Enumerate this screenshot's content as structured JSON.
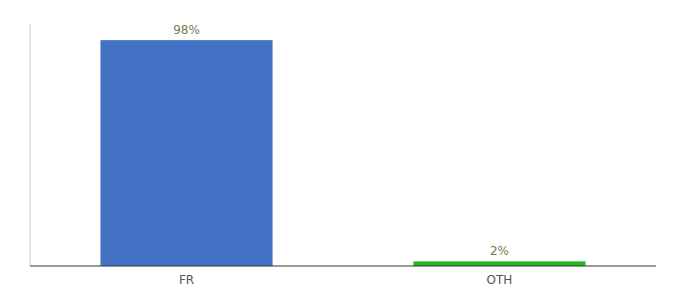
{
  "chart_data": {
    "type": "bar",
    "categories": [
      "FR",
      "OTH"
    ],
    "values": [
      98,
      2
    ],
    "value_labels": [
      "98%",
      "2%"
    ],
    "colors": [
      "#4472c4",
      "#22bb22"
    ],
    "ylim": [
      0,
      105
    ],
    "grid": false,
    "data_labels": true,
    "tick_labels": "x"
  }
}
